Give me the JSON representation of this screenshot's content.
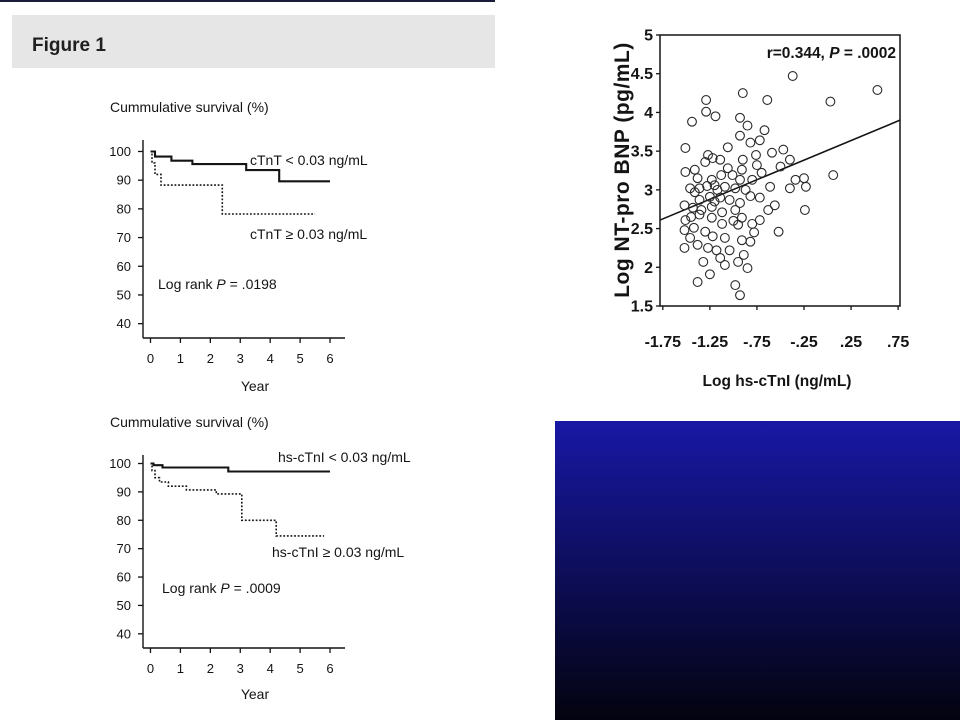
{
  "header": {
    "title": "Figure 1"
  },
  "colors": {
    "ink": "#141414",
    "header_bg": "#e6e6e6",
    "top_rule": "#1b1b3a",
    "panel_top": "#1818a6",
    "panel_bottom": "#03030f"
  },
  "chart_data": [
    {
      "type": "line",
      "line_shape": "step",
      "ylabel": "Cummulative survival (%)",
      "xlabel": "Year",
      "xlim": [
        -0.25,
        6.5
      ],
      "ylim": [
        35,
        104
      ],
      "xticks": [
        0,
        1,
        2,
        3,
        4,
        5,
        6
      ],
      "yticks": [
        100,
        90,
        80,
        70,
        60,
        50,
        40
      ],
      "grid": false,
      "legend": "inline",
      "series": [
        {
          "name": "cTnT < 0.03 ng/mL",
          "line_style": "solid",
          "x": [
            0,
            0.15,
            0.7,
            1.4,
            3.2,
            4.3,
            6.0
          ],
          "y": [
            100,
            98.2,
            96.8,
            95.6,
            93.5,
            89.6,
            89.6
          ]
        },
        {
          "name": "cTnT ≥ 0.03 ng/mL",
          "line_style": "dotted",
          "x": [
            0,
            0.05,
            0.15,
            0.35,
            2.4,
            5.5
          ],
          "y": [
            100,
            96,
            92,
            88.3,
            78.2,
            78.2
          ]
        }
      ],
      "annotation": {
        "label": "Log rank",
        "stat": "P",
        "value": "= .0198"
      }
    },
    {
      "type": "line",
      "line_shape": "step",
      "ylabel": "Cummulative survival (%)",
      "xlabel": "Year",
      "xlim": [
        -0.25,
        6.5
      ],
      "ylim": [
        35,
        103
      ],
      "xticks": [
        0,
        1,
        2,
        3,
        4,
        5,
        6
      ],
      "yticks": [
        100,
        90,
        80,
        70,
        60,
        50,
        40
      ],
      "grid": false,
      "legend": "inline",
      "series": [
        {
          "name": "hs-cTnI < 0.03 ng/mL",
          "line_style": "solid",
          "x": [
            0,
            0.1,
            0.4,
            2.6,
            6.0
          ],
          "y": [
            100,
            99.4,
            98.6,
            97.2,
            97.2
          ]
        },
        {
          "name": "hs-cTnI ≥ 0.03 ng/mL",
          "line_style": "dotted",
          "x": [
            0,
            0.05,
            0.15,
            0.3,
            0.6,
            1.2,
            2.2,
            3.05,
            4.2,
            5.8
          ],
          "y": [
            100,
            97.5,
            95,
            93.5,
            92,
            90.7,
            89.3,
            80,
            74.5,
            74.5
          ]
        }
      ],
      "annotation": {
        "label": "Log rank",
        "stat": "P",
        "value": "= .0009"
      }
    },
    {
      "type": "scatter",
      "xlabel": "Log hs-cTnI (ng/mL)",
      "ylabel": "Log NT-pro BNP (pg/mL)",
      "xlim": [
        -1.78,
        0.77
      ],
      "ylim": [
        1.5,
        5
      ],
      "xticks": [
        -1.75,
        -1.25,
        -0.75,
        -0.25,
        0.25,
        0.75
      ],
      "xtick_labels": [
        "-1.75",
        "-1.25",
        "-.75",
        "-.25",
        ".25",
        ".75"
      ],
      "yticks": [
        1.5,
        2,
        2.5,
        3,
        3.5,
        4,
        4.5,
        5
      ],
      "ytick_labels": [
        "1.5",
        "2",
        "2.5",
        "3",
        "3.5",
        "4",
        "4.5",
        "5"
      ],
      "grid": false,
      "annotation": {
        "label": "r=0.344,",
        "stat": "P",
        "value": "= .0002"
      },
      "fit_line": {
        "x": [
          -1.78,
          0.77
        ],
        "y": [
          2.61,
          3.9
        ]
      },
      "points": [
        [
          -0.37,
          4.47
        ],
        [
          0.53,
          4.29
        ],
        [
          0.03,
          4.14
        ],
        [
          -0.9,
          4.25
        ],
        [
          -1.29,
          4.16
        ],
        [
          -0.64,
          4.16
        ],
        [
          -1.29,
          4.01
        ],
        [
          -1.19,
          3.95
        ],
        [
          -1.44,
          3.88
        ],
        [
          -0.93,
          3.93
        ],
        [
          -0.85,
          3.83
        ],
        [
          -0.67,
          3.77
        ],
        [
          -0.93,
          3.7
        ],
        [
          -0.72,
          3.64
        ],
        [
          -0.82,
          3.61
        ],
        [
          -1.06,
          3.55
        ],
        [
          -1.51,
          3.54
        ],
        [
          -1.27,
          3.45
        ],
        [
          -1.22,
          3.41
        ],
        [
          -1.3,
          3.36
        ],
        [
          -1.14,
          3.39
        ],
        [
          -0.9,
          3.39
        ],
        [
          -0.76,
          3.45
        ],
        [
          -0.59,
          3.48
        ],
        [
          -0.47,
          3.52
        ],
        [
          -0.4,
          3.39
        ],
        [
          -0.75,
          3.32
        ],
        [
          -0.91,
          3.26
        ],
        [
          -1.06,
          3.28
        ],
        [
          -1.41,
          3.26
        ],
        [
          -1.51,
          3.23
        ],
        [
          -1.38,
          3.15
        ],
        [
          -1.23,
          3.13
        ],
        [
          -1.13,
          3.19
        ],
        [
          -1.01,
          3.19
        ],
        [
          -0.93,
          3.13
        ],
        [
          -0.7,
          3.22
        ],
        [
          -0.34,
          3.13
        ],
        [
          0.06,
          3.19
        ],
        [
          -0.25,
          3.15
        ],
        [
          -1.46,
          3.02
        ],
        [
          -1.41,
          2.97
        ],
        [
          -1.36,
          3.02
        ],
        [
          -1.28,
          3.05
        ],
        [
          -1.2,
          3.06
        ],
        [
          -1.09,
          3.04
        ],
        [
          -0.98,
          3.02
        ],
        [
          -0.87,
          3.0
        ],
        [
          -1.17,
          3.0
        ],
        [
          -1.36,
          2.87
        ],
        [
          -1.25,
          2.91
        ],
        [
          -1.14,
          2.9
        ],
        [
          -1.04,
          2.87
        ],
        [
          -0.93,
          2.83
        ],
        [
          -0.82,
          2.92
        ],
        [
          -1.52,
          2.8
        ],
        [
          -1.43,
          2.77
        ],
        [
          -1.34,
          2.74
        ],
        [
          -1.23,
          2.78
        ],
        [
          -1.12,
          2.71
        ],
        [
          -0.98,
          2.74
        ],
        [
          -0.72,
          2.9
        ],
        [
          -0.24,
          2.74
        ],
        [
          -0.63,
          2.74
        ],
        [
          -1.36,
          2.68
        ],
        [
          -1.23,
          2.64
        ],
        [
          -1.12,
          2.56
        ],
        [
          -0.95,
          2.55
        ],
        [
          -0.8,
          2.56
        ],
        [
          -0.91,
          2.64
        ],
        [
          -1.51,
          2.61
        ],
        [
          -1.52,
          2.48
        ],
        [
          -1.42,
          2.51
        ],
        [
          -1.3,
          2.46
        ],
        [
          -1.22,
          2.4
        ],
        [
          -1.09,
          2.38
        ],
        [
          -0.91,
          2.35
        ],
        [
          -0.82,
          2.33
        ],
        [
          -0.72,
          2.61
        ],
        [
          -0.52,
          2.46
        ],
        [
          -1.46,
          2.38
        ],
        [
          -1.38,
          2.29
        ],
        [
          -1.27,
          2.25
        ],
        [
          -1.52,
          2.25
        ],
        [
          -1.18,
          2.22
        ],
        [
          -1.04,
          2.22
        ],
        [
          -0.89,
          2.16
        ],
        [
          -1.14,
          2.12
        ],
        [
          -1.32,
          2.07
        ],
        [
          -1.09,
          2.03
        ],
        [
          -0.85,
          1.99
        ],
        [
          -0.95,
          2.07
        ],
        [
          -1.38,
          1.81
        ],
        [
          -1.25,
          1.91
        ],
        [
          -0.98,
          1.77
        ],
        [
          -0.93,
          1.64
        ],
        [
          -0.56,
          2.8
        ],
        [
          -0.4,
          3.02
        ],
        [
          -0.8,
          3.13
        ],
        [
          -0.61,
          3.04
        ],
        [
          -0.23,
          3.04
        ],
        [
          -0.5,
          3.3
        ],
        [
          -1.45,
          2.65
        ],
        [
          -1.2,
          2.85
        ],
        [
          -1.0,
          2.6
        ],
        [
          -0.78,
          2.45
        ]
      ]
    }
  ]
}
